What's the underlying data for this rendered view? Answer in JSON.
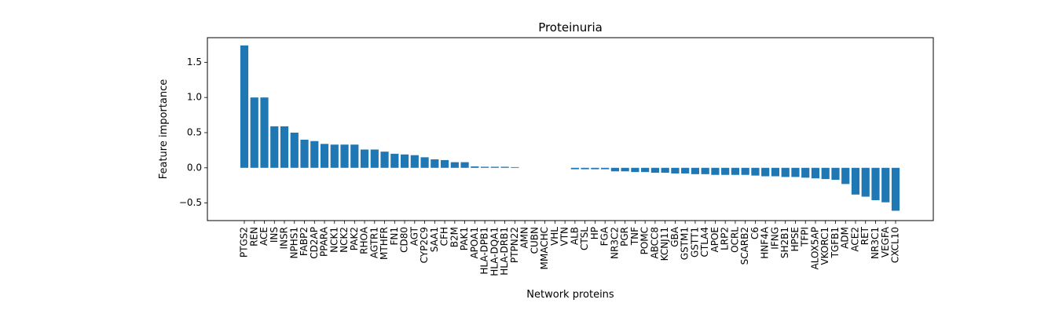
{
  "chart_data": {
    "type": "bar",
    "title": "Proteinuria",
    "xlabel": "Network proteins",
    "ylabel": "Feature importance",
    "ylim": [
      -0.75,
      1.85
    ],
    "yticks": [
      "−0.5",
      "0.0",
      "0.5",
      "1.0",
      "1.5"
    ],
    "ytick_values": [
      -0.5,
      0.0,
      0.5,
      1.0,
      1.5
    ],
    "grid": false,
    "bar_color": "#1f77b4",
    "categories": [
      "PTGS2",
      "REN",
      "ACE",
      "INS",
      "INSR",
      "NPHS1",
      "FABP2",
      "CD2AP",
      "PPARA",
      "NCK1",
      "NCK2",
      "PAK2",
      "RHOA",
      "AGTR1",
      "MTHFR",
      "FN1",
      "CD80",
      "AGT",
      "CYP2C9",
      "SAA1",
      "CFH",
      "B2M",
      "PAK1",
      "APOA1",
      "HLA-DPB1",
      "HLA-DQA1",
      "HLA-DRB1",
      "PTPN22",
      "AMN",
      "CUBN",
      "MMACHC",
      "VHL",
      "VTN",
      "ALB",
      "CTSL",
      "HP",
      "FGA",
      "NR3C2",
      "PGR",
      "TNF",
      "POMC",
      "ABCC8",
      "KCNJ11",
      "GBA",
      "GSTM1",
      "GSTT1",
      "CTLA4",
      "APOE",
      "LRP2",
      "OCRL",
      "SCARB2",
      "C6",
      "HNF4A",
      "IFNG",
      "SH2B1",
      "HPSE",
      "TFPI",
      "ALOX5AP",
      "VKORC1",
      "TGFB1",
      "ADM",
      "ACE2",
      "RET",
      "NR3C1",
      "VEGFA",
      "CXCL10"
    ],
    "values": [
      1.74,
      1.0,
      1.0,
      0.59,
      0.59,
      0.5,
      0.4,
      0.38,
      0.34,
      0.33,
      0.33,
      0.33,
      0.26,
      0.26,
      0.23,
      0.2,
      0.19,
      0.18,
      0.15,
      0.12,
      0.11,
      0.08,
      0.08,
      0.02,
      0.015,
      0.015,
      0.015,
      0.01,
      0.0,
      0.0,
      0.0,
      0.0,
      0.0,
      -0.02,
      -0.02,
      -0.02,
      -0.02,
      -0.05,
      -0.05,
      -0.06,
      -0.06,
      -0.07,
      -0.07,
      -0.08,
      -0.08,
      -0.09,
      -0.09,
      -0.1,
      -0.1,
      -0.1,
      -0.1,
      -0.11,
      -0.12,
      -0.12,
      -0.13,
      -0.13,
      -0.14,
      -0.15,
      -0.16,
      -0.17,
      -0.23,
      -0.38,
      -0.41,
      -0.46,
      -0.49,
      -0.61
    ]
  }
}
